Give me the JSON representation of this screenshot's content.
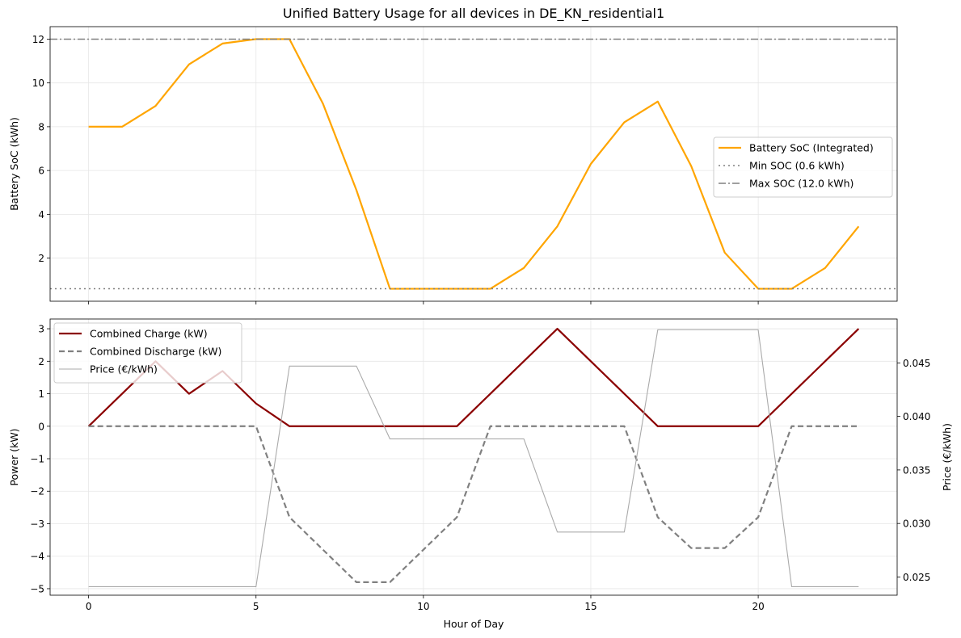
{
  "title": "Unified Battery Usage for all devices in DE_KN_residential1",
  "chart_data": [
    {
      "type": "line",
      "ylabel": "Battery SoC (kWh)",
      "x_ticks": [
        0,
        5,
        10,
        15,
        20
      ],
      "y_ticks": [
        2,
        4,
        6,
        8,
        10,
        12
      ],
      "xlim": [
        -1.15,
        24.15
      ],
      "ylim": [
        0.03,
        12.57
      ],
      "grid": true,
      "legend_position": "center-right",
      "series": [
        {
          "name": "Battery SoC (Integrated)",
          "color": "#FFA500",
          "style": "solid",
          "x": [
            0,
            1,
            2,
            3,
            4,
            5,
            6,
            7,
            8,
            9,
            10,
            11,
            12,
            13,
            14,
            15,
            16,
            17,
            18,
            19,
            20,
            21,
            22,
            23
          ],
          "y": [
            8.0,
            8.0,
            8.95,
            10.85,
            11.8,
            12.0,
            12.0,
            9.05,
            5.1,
            0.6,
            0.6,
            0.6,
            0.6,
            1.55,
            3.45,
            6.3,
            8.2,
            9.15,
            6.2,
            2.25,
            0.6,
            0.6,
            1.55,
            3.45
          ]
        },
        {
          "name": "Min SOC (0.6 kWh)",
          "color": "#808080",
          "style": "dotted",
          "constant": 0.6
        },
        {
          "name": "Max SOC (12.0 kWh)",
          "color": "#808080",
          "style": "dashdot",
          "constant": 12.0
        }
      ]
    },
    {
      "type": "line",
      "xlabel": "Hour of Day",
      "ylabel": "Power (kW)",
      "ylabel_right": "Price (€/kWh)",
      "x_ticks": [
        0,
        5,
        10,
        15,
        20
      ],
      "y_ticks": [
        -5,
        -4,
        -3,
        -2,
        -1,
        0,
        1,
        2,
        3
      ],
      "y_right_ticks": [
        0.025,
        0.03,
        0.035,
        0.04,
        0.045
      ],
      "xlim": [
        -1.15,
        24.15
      ],
      "ylim": [
        -5.2,
        3.3
      ],
      "ylim_right": [
        0.0233,
        0.0491
      ],
      "grid": true,
      "legend_position": "top-left",
      "series": [
        {
          "name": "Combined Charge (kW)",
          "color": "#8B0000",
          "style": "solid",
          "axis": "left",
          "x": [
            0,
            1,
            2,
            3,
            4,
            5,
            6,
            7,
            8,
            9,
            10,
            11,
            12,
            13,
            14,
            15,
            16,
            17,
            18,
            19,
            20,
            21,
            22,
            23
          ],
          "y": [
            0,
            1,
            2,
            1,
            1.7,
            0.7,
            0,
            0,
            0,
            0,
            0,
            0,
            1,
            2,
            3,
            2,
            1,
            0,
            0,
            0,
            0,
            1,
            2,
            3
          ]
        },
        {
          "name": "Combined Discharge (kW)",
          "color": "#808080",
          "style": "dashed",
          "axis": "left",
          "x": [
            0,
            1,
            2,
            3,
            4,
            5,
            6,
            7,
            8,
            9,
            10,
            11,
            12,
            13,
            14,
            15,
            16,
            17,
            18,
            19,
            20,
            21,
            22,
            23
          ],
          "y": [
            0,
            0,
            0,
            0,
            0,
            0,
            -2.8,
            -3.8,
            -4.8,
            -4.8,
            -3.8,
            -2.8,
            0,
            0,
            0,
            0,
            0,
            -2.8,
            -3.75,
            -3.75,
            -2.8,
            0,
            0,
            0
          ]
        },
        {
          "name": "Price (€/kWh)",
          "color": "#AAAAAA",
          "style": "solid",
          "axis": "right",
          "x": [
            0,
            1,
            2,
            3,
            4,
            5,
            6,
            7,
            8,
            9,
            10,
            11,
            12,
            13,
            14,
            15,
            16,
            17,
            18,
            19,
            20,
            21,
            22,
            23
          ],
          "y": [
            0.0241,
            0.0241,
            0.0241,
            0.0241,
            0.0241,
            0.0241,
            0.0447,
            0.0447,
            0.0447,
            0.0379,
            0.0379,
            0.0379,
            0.0379,
            0.0379,
            0.0292,
            0.0292,
            0.0292,
            0.0481,
            0.0481,
            0.0481,
            0.0481,
            0.0241,
            0.0241,
            0.0241
          ]
        }
      ]
    }
  ]
}
